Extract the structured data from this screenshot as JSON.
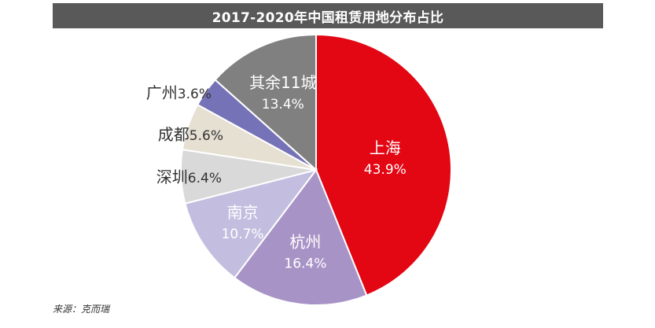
{
  "chart_data": {
    "type": "pie",
    "title": "2017-2020年中国租赁用地分布占比",
    "slices": [
      {
        "name": "上海",
        "value": 43.9,
        "value_label": "43.9%",
        "color": "#E30613",
        "text_color": "#ffffff",
        "label_inside": true
      },
      {
        "name": "杭州",
        "value": 16.4,
        "value_label": "16.4%",
        "color": "#A893C6",
        "text_color": "#ffffff",
        "label_inside": true
      },
      {
        "name": "南京",
        "value": 10.7,
        "value_label": "10.7%",
        "color": "#C3BEDF",
        "text_color": "#ffffff",
        "label_inside": true
      },
      {
        "name": "深圳",
        "value": 6.4,
        "value_label": "6.4%",
        "color": "#D9D9D9",
        "text_color": "#333333",
        "label_inside": false
      },
      {
        "name": "成都",
        "value": 5.6,
        "value_label": "5.6%",
        "color": "#E6E0D3",
        "text_color": "#333333",
        "label_inside": false
      },
      {
        "name": "广州",
        "value": 3.6,
        "value_label": "3.6%",
        "color": "#7672B7",
        "text_color": "#333333",
        "label_inside": false
      },
      {
        "name": "其余11城",
        "value": 13.4,
        "value_label": "13.4%",
        "color": "#808080",
        "text_color": "#ffffff",
        "label_inside": true
      }
    ],
    "start": "12 o'clock",
    "direction": "clockwise",
    "legend": "none"
  },
  "source": "来源：克而瑞"
}
